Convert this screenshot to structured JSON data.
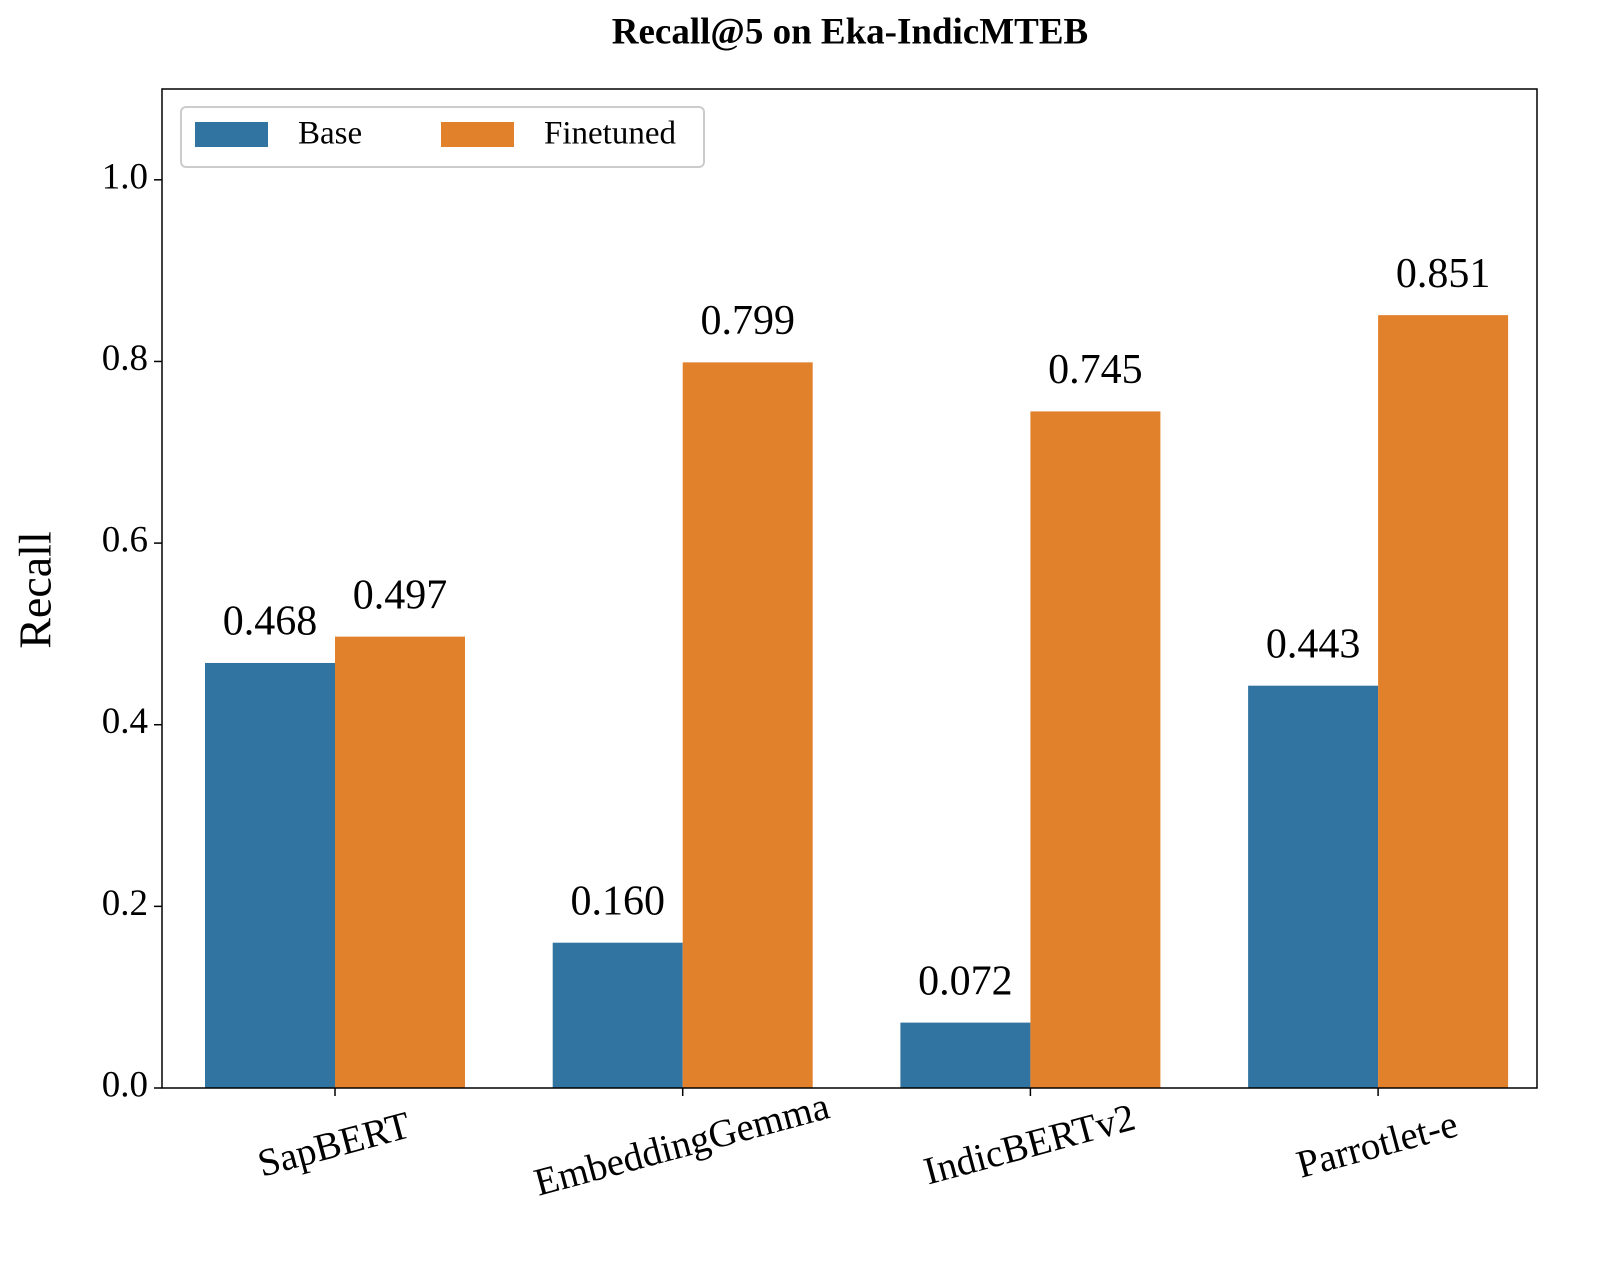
{
  "chart_data": {
    "type": "bar",
    "title": "Recall@5 on Eka-IndicMTEB",
    "y_label": "Recall",
    "categories": [
      "SapBERT",
      "EmbeddingGemma",
      "IndicBERTv2",
      "Parrotlet-e"
    ],
    "series": [
      {
        "name": "Base",
        "color": "#3274a1",
        "values": [
          0.468,
          0.16,
          0.072,
          0.443
        ],
        "value_labels": [
          "0.468",
          "0.160",
          "0.072",
          "0.443"
        ]
      },
      {
        "name": "Finetuned",
        "color": "#e1812c",
        "values": [
          0.497,
          0.799,
          0.745,
          0.851
        ],
        "value_labels": [
          "0.497",
          "0.799",
          "0.745",
          "0.851"
        ]
      }
    ],
    "ylim": [
      0,
      1.1
    ],
    "yticks": [
      {
        "value": 0,
        "label": "0.0"
      },
      0.2,
      0.4,
      0.6,
      0.8,
      {
        "value": 1,
        "label": "1.0"
      }
    ],
    "legend": "upper left",
    "grid": false
  }
}
